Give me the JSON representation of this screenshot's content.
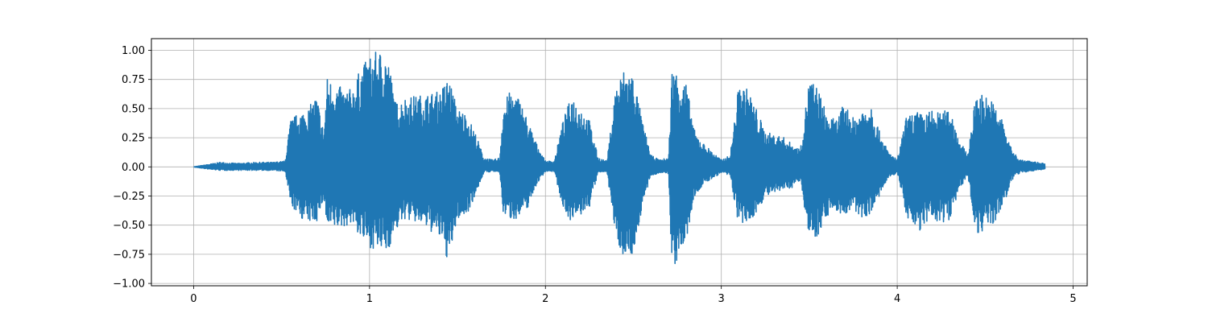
{
  "chart_data": {
    "type": "line",
    "title": "",
    "xlabel": "",
    "ylabel": "",
    "xlim": [
      -0.24,
      5.08
    ],
    "ylim": [
      -1.02,
      1.1
    ],
    "grid": true,
    "x_ticks": [
      0,
      1,
      2,
      3,
      4,
      5
    ],
    "x_tick_labels": [
      "0",
      "1",
      "2",
      "3",
      "4",
      "5"
    ],
    "y_ticks": [
      -1.0,
      -0.75,
      -0.5,
      -0.25,
      0.0,
      0.25,
      0.5,
      0.75,
      1.0
    ],
    "y_tick_labels": [
      "−1.00",
      "−0.75",
      "−0.50",
      "−0.25",
      "0.00",
      "0.25",
      "0.50",
      "0.75",
      "1.00"
    ],
    "line_color": "#1f77b4",
    "series": [
      {
        "x_range": [
          0,
          4.84
        ],
        "envelope": {
          "t": [
            0.0,
            0.08,
            0.15,
            0.25,
            0.35,
            0.45,
            0.52,
            0.55,
            0.6,
            0.65,
            0.7,
            0.74,
            0.76,
            0.8,
            0.85,
            0.9,
            0.95,
            1.0,
            1.05,
            1.1,
            1.15,
            1.2,
            1.3,
            1.4,
            1.45,
            1.5,
            1.55,
            1.6,
            1.65,
            1.7,
            1.74,
            1.76,
            1.8,
            1.85,
            1.9,
            1.95,
            2.0,
            2.05,
            2.1,
            2.15,
            2.2,
            2.25,
            2.3,
            2.35,
            2.4,
            2.45,
            2.5,
            2.55,
            2.6,
            2.65,
            2.7,
            2.72,
            2.75,
            2.8,
            2.85,
            2.9,
            3.0,
            3.05,
            3.1,
            3.15,
            3.2,
            3.25,
            3.3,
            3.35,
            3.4,
            3.45,
            3.5,
            3.55,
            3.6,
            3.65,
            3.7,
            3.75,
            3.8,
            3.85,
            3.9,
            3.95,
            4.0,
            4.05,
            4.1,
            4.15,
            4.2,
            4.25,
            4.3,
            4.35,
            4.4,
            4.45,
            4.5,
            4.55,
            4.6,
            4.65,
            4.7,
            4.75,
            4.84
          ],
          "upper": [
            0.0,
            0.02,
            0.04,
            0.03,
            0.04,
            0.04,
            0.05,
            0.4,
            0.47,
            0.5,
            0.62,
            0.3,
            0.77,
            0.72,
            0.67,
            0.67,
            0.85,
            0.95,
            1.0,
            0.98,
            0.55,
            0.6,
            0.62,
            0.65,
            0.78,
            0.5,
            0.46,
            0.3,
            0.08,
            0.06,
            0.08,
            0.55,
            0.65,
            0.6,
            0.4,
            0.2,
            0.05,
            0.05,
            0.4,
            0.62,
            0.52,
            0.4,
            0.08,
            0.05,
            0.7,
            0.85,
            0.8,
            0.4,
            0.1,
            0.06,
            0.08,
            0.85,
            0.82,
            0.72,
            0.3,
            0.2,
            0.06,
            0.1,
            0.72,
            0.67,
            0.5,
            0.3,
            0.28,
            0.26,
            0.2,
            0.15,
            0.77,
            0.68,
            0.45,
            0.4,
            0.55,
            0.42,
            0.5,
            0.57,
            0.3,
            0.13,
            0.06,
            0.42,
            0.48,
            0.45,
            0.49,
            0.46,
            0.52,
            0.25,
            0.1,
            0.65,
            0.62,
            0.55,
            0.4,
            0.15,
            0.06,
            0.05,
            0.03
          ],
          "lower": [
            0.0,
            -0.02,
            -0.03,
            -0.03,
            -0.03,
            -0.03,
            -0.04,
            -0.32,
            -0.43,
            -0.48,
            -0.47,
            -0.28,
            -0.56,
            -0.53,
            -0.52,
            -0.48,
            -0.62,
            -0.69,
            -0.72,
            -0.74,
            -0.55,
            -0.45,
            -0.5,
            -0.62,
            -0.83,
            -0.45,
            -0.42,
            -0.25,
            -0.05,
            -0.04,
            -0.05,
            -0.4,
            -0.45,
            -0.44,
            -0.35,
            -0.15,
            -0.04,
            -0.04,
            -0.35,
            -0.48,
            -0.42,
            -0.35,
            -0.05,
            -0.04,
            -0.62,
            -0.78,
            -0.76,
            -0.35,
            -0.08,
            -0.05,
            -0.06,
            -0.92,
            -0.8,
            -0.65,
            -0.25,
            -0.15,
            -0.05,
            -0.08,
            -0.52,
            -0.49,
            -0.4,
            -0.25,
            -0.24,
            -0.2,
            -0.18,
            -0.12,
            -0.62,
            -0.59,
            -0.42,
            -0.38,
            -0.42,
            -0.38,
            -0.44,
            -0.4,
            -0.25,
            -0.1,
            -0.05,
            -0.4,
            -0.58,
            -0.52,
            -0.47,
            -0.48,
            -0.45,
            -0.2,
            -0.08,
            -0.58,
            -0.54,
            -0.5,
            -0.35,
            -0.12,
            -0.05,
            -0.04,
            -0.02
          ]
        }
      }
    ]
  }
}
